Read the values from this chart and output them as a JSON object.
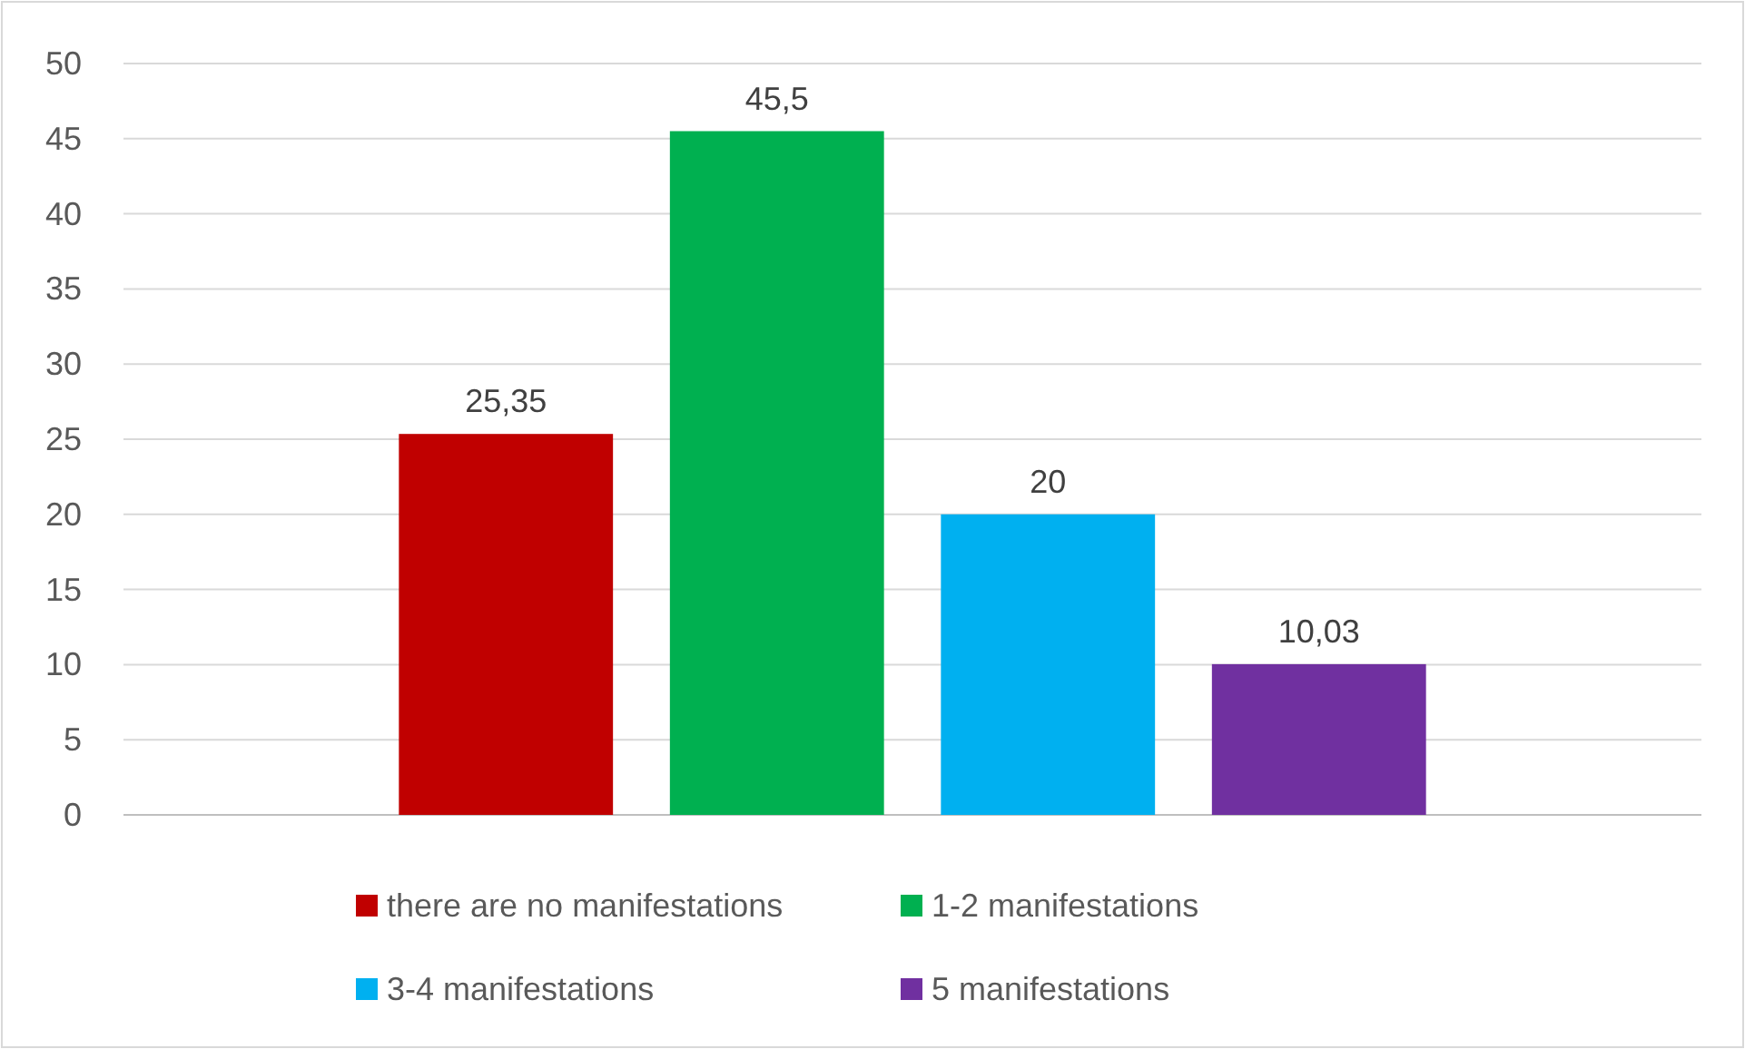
{
  "chart_data": {
    "type": "bar",
    "categories": [
      null
    ],
    "series": [
      {
        "name": "there are no manifestations",
        "color": "#c00000",
        "values": [
          25.35
        ],
        "value_labels": [
          "25,35"
        ]
      },
      {
        "name": "1-2 manifestations",
        "color": "#00b050",
        "values": [
          45.5
        ],
        "value_labels": [
          "45,5"
        ]
      },
      {
        "name": "3-4 manifestations",
        "color": "#00b0f0",
        "values": [
          20
        ],
        "value_labels": [
          "20"
        ]
      },
      {
        "name": "5 manifestations",
        "color": "#7030a0",
        "values": [
          10.03
        ],
        "value_labels": [
          "10,03"
        ]
      }
    ],
    "ylim": [
      0,
      50
    ],
    "yticks": [
      0,
      5,
      10,
      15,
      20,
      25,
      30,
      35,
      40,
      45,
      50
    ],
    "grid": "y",
    "legend": "bottom"
  }
}
